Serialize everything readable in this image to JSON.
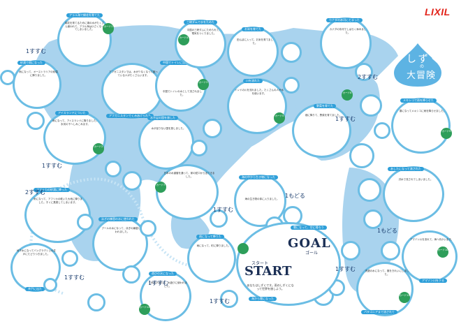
{
  "brand": {
    "logo": "LIXIL",
    "logo_color": "#e2231a"
  },
  "title": {
    "line1": "しずく",
    "no": "の",
    "line2": "大冒険"
  },
  "colors": {
    "ocean": "#d7ebf7",
    "land": "#a9d3ee",
    "circle_border": "#6bbde4",
    "label_bg": "#2e9fd9",
    "card": "#2e9e5a",
    "title_drop": "#5db3e3"
  },
  "goal": {
    "label": "GOAL",
    "kana": "ゴール",
    "caption": "雲になって、空に帰ろう"
  },
  "start": {
    "label": "START",
    "kana": "スタート",
    "text": "あなたはしずくです。雨のしずくになって世界を旅しよう。",
    "footer": "海から雲になった"
  },
  "spaces": [
    {
      "id": "s1",
      "title": "アラル海で綿花を育てた",
      "text": "綿花を育てるために湖の水がたくさん使われて、アラル海は小さくなってしまいました。",
      "card": "カード1"
    },
    {
      "id": "s2",
      "title": "砂漠で雨になった",
      "text": "雨になって、オーストラリアの砂漠に降りました。"
    },
    {
      "id": "s3",
      "title": "アイスランドについた",
      "text": "雨になって、アイスランドに降りました。氷河の下へしみこみます。",
      "card": "カード2"
    },
    {
      "id": "s4",
      "title": "アフリカの砂漠に降った",
      "text": "雨になって、アフリカの乾いた大地に降りました。すぐに蒸発してしまいます。"
    },
    {
      "id": "s5",
      "title": "バングラデシュで井戸水になった",
      "text": "地下水になってバングラデシュの井戸にたどりつきました。",
      "footer": "井戸に出た"
    },
    {
      "id": "s6",
      "title": "アフガニスタンで水がなくなった",
      "text": "アフガニスタンでは、水が少なくなって困っている人がたくさんいます。",
      "footer": "アフガニスタンでくみあげられた"
    },
    {
      "id": "s7",
      "title": "中国でトイレに流された",
      "text": "中国でトイレの水として流されました。",
      "card": "カード3"
    },
    {
      "id": "s8",
      "title": "三峡ダムで水をためた",
      "text": "中国の三峡ダムにためられて、電気をつくりました。",
      "card": "カード4"
    },
    {
      "id": "s9",
      "title": "お米を育てた",
      "text": "田んぼに入って、お米を育てました。"
    },
    {
      "id": "s10",
      "title": "川を流れた",
      "text": "インドの川を流れました。たくさんの人が水を使います。",
      "card": "カード5"
    },
    {
      "id": "s11",
      "title": "水不足の国を旅した",
      "text": "水が足りない国を旅しました。",
      "card": "カード6"
    },
    {
      "id": "s12",
      "title": "水道管を流れた",
      "text": "日本の水道管を通って、家の蛇口から出てきました。",
      "card": "カード7"
    },
    {
      "id": "s13",
      "title": "野菜を育てた",
      "text": "畑に降りて、野菜を育てました。"
    },
    {
      "id": "s14",
      "title": "海の中から生き物になった",
      "text": "海の生き物の体に入りました。"
    },
    {
      "id": "s15",
      "title": "カナダの氷河にとまった",
      "text": "カナダの氷河でしばらく休みました。",
      "card": "カード8"
    },
    {
      "id": "s16",
      "title": "メキシコで雨を降らせた",
      "text": "雲になってメキシコに雨を降らせました。",
      "card": "カード9"
    },
    {
      "id": "s17",
      "title": "あしたになって流された",
      "text": "洪水で流されてしまいました。"
    },
    {
      "id": "s18",
      "title": "アマゾン川を流れた",
      "text": "アマゾン川を流れて、海へ向かいます。",
      "card": "カード10",
      "footer": "アマゾン川を下る"
    },
    {
      "id": "s19",
      "title": "洗濯の水になった",
      "text": "洗濯の水になって、服をきれいにしました。",
      "card": "カード11",
      "footer": "パタゴニアまで流されて"
    },
    {
      "id": "s20",
      "title": "泳ぎの練習の水に使われた",
      "text": "プールの水になって、泳ぎの練習に使われました。"
    },
    {
      "id": "s21",
      "title": "遊びの水になった",
      "text": "くみあげられて、水遊びに使われました。",
      "card": "カード12"
    },
    {
      "id": "s22",
      "title": "雨になって降りた",
      "text": "雨になって、町に降りました。"
    }
  ],
  "steps": [
    "1すすむ",
    "2すすむ",
    "1すすむ",
    "1すすむ",
    "2すすむ",
    "1すすむ",
    "1もどる",
    "1すすむ",
    "1すすむ",
    "1もどる",
    "1すすむ",
    "1すすむ"
  ]
}
